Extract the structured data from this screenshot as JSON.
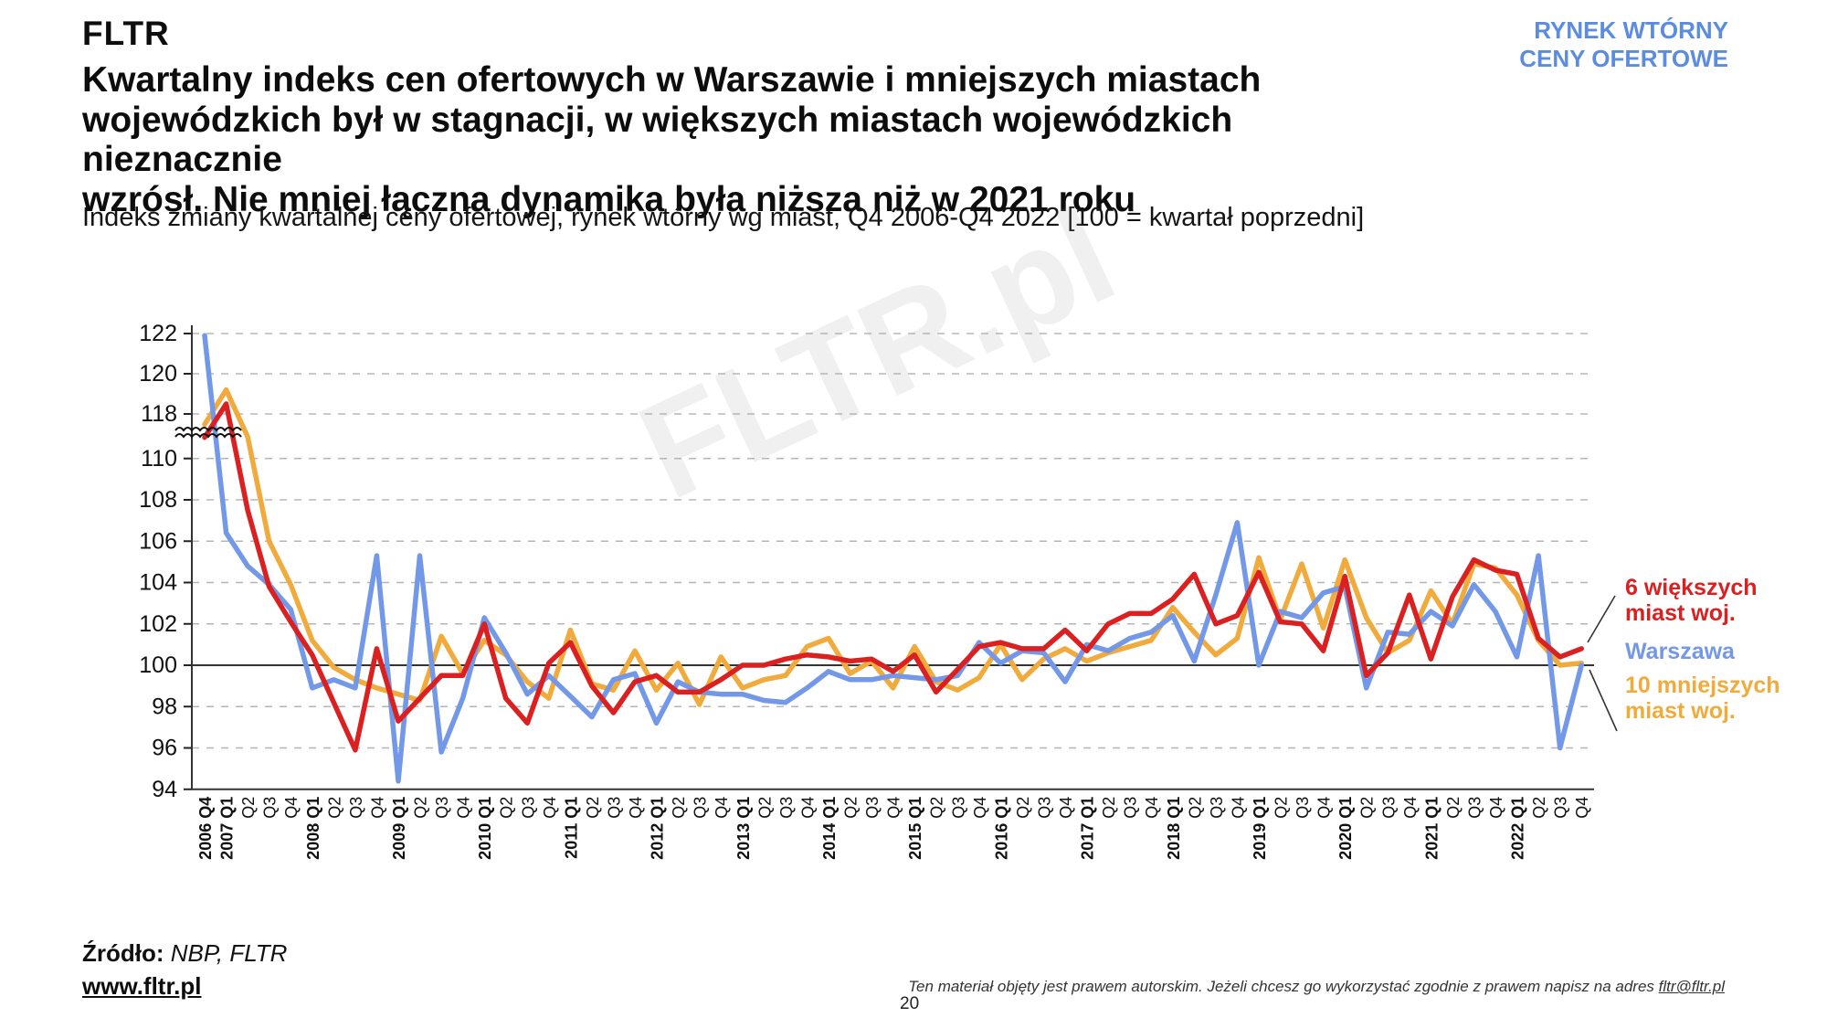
{
  "header": {
    "logo": "FLTR",
    "badge_line1": "RYNEK WTÓRNY",
    "badge_line2": "CENY OFERTOWE",
    "badge_color": "#5b8ce0"
  },
  "title_lines": [
    "Kwartalny indeks cen ofertowych w Warszawie i mniejszych miastach",
    "wojewódzkich był w stagnacji, w większych miastach wojewódzkich nieznacznie",
    "wzrósł. Nie mniej łączna dynamika była niższa niż w 2021 roku"
  ],
  "subtitle": "Indeks zmiany kwartalnej ceny ofertowej, rynek wtórny wg miast, Q4 2006-Q4 2022 [100 = kwartał poprzedni]",
  "watermark": "FLTR.pl",
  "chart_data": {
    "type": "line",
    "title": "Indeks zmiany kwartalnej ceny ofertowej, rynek wtórny wg miast",
    "x_axis_note": "quarters Q4 2006 - Q4 2022, baseline 100 = previous quarter",
    "y_axis_break": {
      "between": [
        110,
        118
      ],
      "note": "axis break marked with double squiggle"
    },
    "y_ticks_lower": [
      94,
      96,
      98,
      100,
      102,
      104,
      106,
      108,
      110
    ],
    "y_ticks_upper": [
      118,
      120,
      122
    ],
    "baseline_value": 100,
    "grid": "dashed horizontal",
    "legend_position": "right",
    "categories": [
      "2006 Q4",
      "2007 Q1",
      "Q2",
      "Q3",
      "Q4",
      "2008 Q1",
      "Q2",
      "Q3",
      "Q4",
      "2009 Q1",
      "Q2",
      "Q3",
      "Q4",
      "2010 Q1",
      "Q2",
      "Q3",
      "Q4",
      "2011 Q1",
      "Q2",
      "Q3",
      "Q4",
      "2012 Q1",
      "Q2",
      "Q3",
      "Q4",
      "2013 Q1",
      "Q2",
      "Q3",
      "Q4",
      "2014 Q1",
      "Q2",
      "Q3",
      "Q4",
      "2015 Q1",
      "Q2",
      "Q3",
      "Q4",
      "2016 Q1",
      "Q2",
      "Q3",
      "Q4",
      "2017 Q1",
      "Q2",
      "Q3",
      "Q4",
      "2018 Q1",
      "Q2",
      "Q3",
      "Q4",
      "2019 Q1",
      "Q2",
      "Q3",
      "Q4",
      "2020 Q1",
      "Q2",
      "Q3",
      "Q4",
      "2021 Q1",
      "Q2",
      "Q3",
      "Q4",
      "2022 Q1",
      "Q2",
      "Q3",
      "Q4"
    ],
    "series": [
      {
        "name": "10 mniejszych miast woj.",
        "color": "#f0ab3c",
        "values": [
          117.3,
          119.2,
          111.5,
          106.0,
          103.9,
          101.2,
          99.9,
          99.3,
          98.9,
          98.6,
          98.3,
          101.4,
          99.6,
          101.2,
          100.5,
          99.2,
          98.4,
          101.7,
          99.1,
          98.8,
          100.7,
          98.8,
          100.1,
          98.1,
          100.4,
          98.9,
          99.3,
          99.5,
          100.9,
          101.3,
          99.6,
          100.2,
          98.9,
          100.9,
          99.2,
          98.8,
          99.4,
          101.0,
          99.3,
          100.3,
          100.8,
          100.2,
          100.6,
          100.9,
          101.2,
          102.8,
          101.6,
          100.5,
          101.3,
          105.2,
          102.2,
          104.9,
          101.8,
          105.1,
          102.3,
          100.6,
          101.2,
          103.6,
          102.0,
          104.9,
          104.7,
          103.4,
          101.2,
          100.0,
          100.1
        ]
      },
      {
        "name": "Warszawa",
        "color": "#7398e8",
        "values": [
          121.9,
          106.4,
          104.8,
          103.9,
          102.7,
          98.9,
          99.3,
          98.9,
          105.3,
          94.4,
          105.3,
          95.8,
          98.4,
          102.3,
          100.6,
          98.6,
          99.5,
          98.5,
          97.5,
          99.3,
          99.6,
          97.2,
          99.2,
          98.7,
          98.6,
          98.6,
          98.3,
          98.2,
          98.9,
          99.7,
          99.3,
          99.3,
          99.5,
          99.4,
          99.3,
          99.5,
          101.1,
          100.1,
          100.7,
          100.6,
          99.2,
          101.0,
          100.7,
          101.3,
          101.6,
          102.4,
          100.2,
          103.4,
          106.9,
          100.0,
          102.6,
          102.3,
          103.5,
          103.8,
          98.9,
          101.6,
          101.5,
          102.6,
          101.9,
          103.9,
          102.6,
          100.4,
          105.3,
          96.0,
          100.0
        ]
      },
      {
        "name": "6 większych miast woj.",
        "color": "#da2020",
        "values": [
          111.2,
          118.5,
          107.5,
          103.8,
          102.1,
          100.5,
          98.2,
          95.9,
          100.8,
          97.3,
          98.4,
          99.5,
          99.5,
          102.0,
          98.4,
          97.2,
          100.1,
          101.1,
          99.0,
          97.7,
          99.2,
          99.5,
          98.7,
          98.7,
          99.3,
          100.0,
          100.0,
          100.3,
          100.5,
          100.4,
          100.2,
          100.3,
          99.7,
          100.5,
          98.7,
          99.8,
          100.9,
          101.1,
          100.8,
          100.8,
          101.7,
          100.7,
          102.0,
          102.5,
          102.5,
          103.2,
          104.4,
          102.0,
          102.4,
          104.5,
          102.1,
          102.0,
          100.7,
          104.3,
          99.5,
          100.6,
          103.4,
          100.3,
          103.3,
          105.1,
          104.6,
          104.4,
          101.3,
          100.4,
          100.8
        ]
      }
    ]
  },
  "legend": [
    {
      "label_line1": "6 większych",
      "label_line2": "miast woj.",
      "color": "#da2020"
    },
    {
      "label_line1": "Warszawa",
      "label_line2": "",
      "color": "#7398e8"
    },
    {
      "label_line1": "10 mniejszych",
      "label_line2": "miast woj.",
      "color": "#f0ab3c"
    }
  ],
  "footer": {
    "source_label": "Źródło:",
    "source_value": "NBP, FLTR",
    "website": "www.fltr.pl",
    "copyright_text": "Ten materiał objęty jest prawem autorskim. Jeżeli chcesz go wykorzystać zgodnie z prawem napisz na adres ",
    "copyright_email": "fltr@fltr.pl"
  },
  "page_number": "20"
}
